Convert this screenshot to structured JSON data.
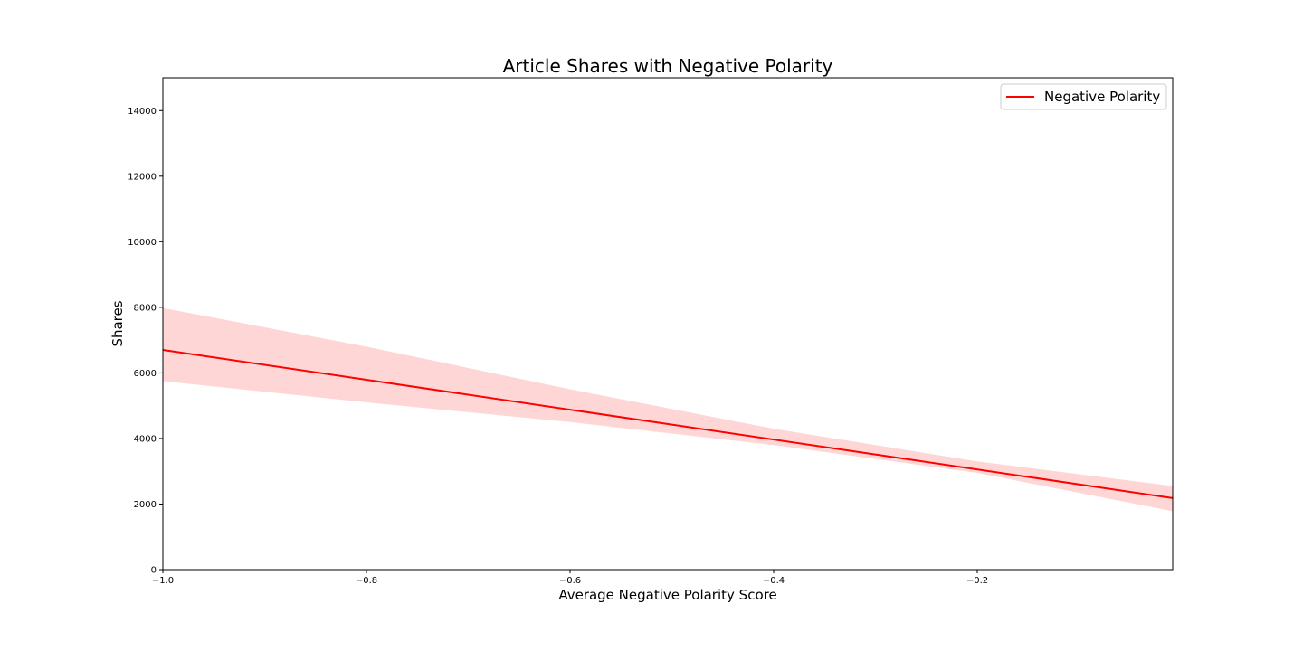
{
  "chart_data": {
    "type": "line",
    "title": "Article Shares with Negative Polarity",
    "xlabel": "Average Negative Polarity Score",
    "ylabel": "Shares",
    "xlim": [
      -1.0,
      -0.008
    ],
    "ylim": [
      0,
      15000
    ],
    "x_ticks": [
      -1.0,
      -0.8,
      -0.6,
      -0.4,
      -0.2
    ],
    "x_tick_labels": [
      "−1.0",
      "−0.8",
      "−0.6",
      "−0.4",
      "−0.2"
    ],
    "y_ticks": [
      0,
      2000,
      4000,
      6000,
      8000,
      10000,
      12000,
      14000
    ],
    "y_tick_labels": [
      "0",
      "2000",
      "4000",
      "6000",
      "8000",
      "10000",
      "12000",
      "14000"
    ],
    "grid": false,
    "legend_position": "top-right",
    "series": [
      {
        "name": "Negative Polarity",
        "color": "#ff0000",
        "x": [
          -1.0,
          -0.008
        ],
        "y": [
          6700,
          2180
        ],
        "band": {
          "color": "#ffd6d6",
          "x": [
            -1.0,
            -0.8,
            -0.6,
            -0.4,
            -0.2,
            -0.008
          ],
          "upper": [
            7980,
            6800,
            5500,
            4300,
            3300,
            2550
          ],
          "lower": [
            5750,
            5100,
            4500,
            3800,
            2950,
            1780
          ]
        }
      }
    ]
  }
}
